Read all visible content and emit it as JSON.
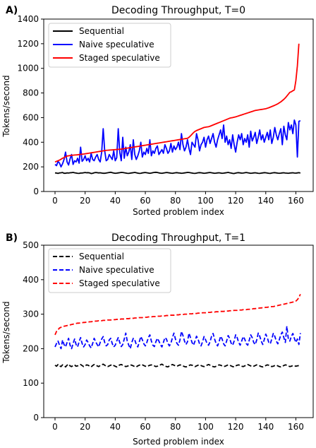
{
  "chart_data": [
    {
      "type": "line",
      "panel_label": "A)",
      "title": "Decoding Throughput, T=0",
      "xlabel": "Sorted problem index",
      "ylabel": "Tokens/second",
      "xlim": [
        -7.5,
        171.5
      ],
      "ylim": [
        0,
        1400
      ],
      "xticks": [
        0,
        20,
        40,
        60,
        80,
        100,
        120,
        140,
        160
      ],
      "yticks": [
        0,
        200,
        400,
        600,
        800,
        1000,
        1200,
        1400
      ],
      "grid": false,
      "legend": "top-left",
      "x_start": 0,
      "x_step": 1,
      "series": [
        {
          "name": "Sequential",
          "color": "#000000",
          "dash": "solid",
          "values": [
            151,
            150,
            147,
            151,
            152,
            154,
            148,
            148,
            151,
            150,
            152,
            153,
            155,
            152,
            150,
            148,
            147,
            150,
            150,
            152,
            154,
            152,
            153,
            151,
            146,
            148,
            152,
            154,
            153,
            151,
            152,
            150,
            148,
            148,
            150,
            152,
            154,
            156,
            153,
            150,
            148,
            149,
            151,
            153,
            155,
            154,
            152,
            150,
            148,
            147,
            149,
            151,
            153,
            155,
            152,
            149,
            147,
            148,
            151,
            153,
            154,
            152,
            150,
            148,
            150,
            153,
            155,
            156,
            154,
            151,
            149,
            148,
            150,
            152,
            154,
            153,
            151,
            149,
            148,
            150,
            152,
            153,
            151,
            150,
            148,
            149,
            151,
            153,
            155,
            154,
            152,
            150,
            148,
            147,
            149,
            152,
            153,
            152,
            150,
            148,
            149,
            151,
            153,
            154,
            152,
            150,
            148,
            149,
            151,
            152,
            150,
            148,
            149,
            151,
            153,
            155,
            152,
            150,
            147,
            146,
            149,
            152,
            153,
            151,
            149,
            150,
            152,
            154,
            152,
            150,
            148,
            149,
            151,
            152,
            150,
            148,
            147,
            149,
            151,
            153,
            152,
            150,
            148,
            147,
            150,
            152,
            153,
            151,
            149,
            148,
            149,
            151,
            152,
            150,
            149,
            148,
            150,
            151,
            152,
            150,
            149,
            151,
            153,
            150
          ]
        },
        {
          "name": "Naive speculative",
          "color": "#0000ff",
          "dash": "solid",
          "values": [
            220,
            210,
            245,
            230,
            200,
            225,
            260,
            320,
            240,
            215,
            265,
            300,
            220,
            250,
            240,
            270,
            230,
            360,
            245,
            260,
            290,
            250,
            270,
            240,
            310,
            260,
            250,
            280,
            300,
            260,
            240,
            320,
            510,
            330,
            250,
            260,
            300,
            280,
            260,
            330,
            250,
            275,
            510,
            320,
            250,
            440,
            270,
            360,
            290,
            320,
            380,
            260,
            420,
            300,
            260,
            290,
            330,
            400,
            280,
            320,
            300,
            350,
            310,
            420,
            290,
            330,
            310,
            350,
            370,
            300,
            320,
            340,
            310,
            380,
            350,
            310,
            330,
            390,
            320,
            370,
            340,
            360,
            400,
            340,
            470,
            380,
            330,
            360,
            420,
            350,
            300,
            400,
            380,
            360,
            470,
            420,
            330,
            380,
            400,
            440,
            360,
            420,
            450,
            390,
            430,
            470,
            400,
            360,
            420,
            460,
            500,
            430,
            540,
            400,
            450,
            380,
            420,
            350,
            460,
            380,
            320,
            400,
            460,
            420,
            470,
            380,
            430,
            400,
            460,
            360,
            490,
            410,
            440,
            480,
            390,
            440,
            500,
            420,
            460,
            400,
            440,
            480,
            420,
            500,
            390,
            440,
            520,
            460,
            420,
            470,
            510,
            380,
            530,
            460,
            420,
            560,
            500,
            540,
            470,
            580,
            540,
            280,
            570,
            575
          ]
        },
        {
          "name": "Staged speculative",
          "color": "#ff0000",
          "dash": "solid",
          "values": [
            240,
            245,
            250,
            255,
            262,
            270,
            275,
            282,
            288,
            290,
            292,
            294,
            295,
            296,
            297,
            298,
            300,
            302,
            303,
            304,
            306,
            308,
            310,
            312,
            314,
            316,
            318,
            320,
            322,
            324,
            326,
            328,
            330,
            332,
            334,
            335,
            336,
            337,
            338,
            339,
            340,
            341,
            342,
            343,
            344,
            346,
            348,
            350,
            352,
            354,
            356,
            358,
            360,
            362,
            364,
            366,
            368,
            370,
            372,
            374,
            376,
            378,
            380,
            382,
            384,
            386,
            388,
            390,
            392,
            394,
            396,
            398,
            400,
            402,
            404,
            406,
            408,
            410,
            412,
            414,
            416,
            418,
            420,
            422,
            424,
            426,
            428,
            430,
            432,
            440,
            452,
            465,
            478,
            488,
            495,
            500,
            505,
            510,
            515,
            520,
            522,
            524,
            526,
            530,
            535,
            540,
            545,
            550,
            555,
            560,
            565,
            570,
            575,
            580,
            585,
            590,
            595,
            598,
            600,
            603,
            606,
            610,
            614,
            618,
            622,
            626,
            630,
            634,
            638,
            642,
            646,
            650,
            654,
            658,
            660,
            662,
            664,
            666,
            668,
            670,
            672,
            676,
            680,
            685,
            690,
            695,
            700,
            706,
            712,
            720,
            728,
            738,
            748,
            760,
            775,
            790,
            805,
            810,
            818,
            825,
            900,
            1020,
            1200
          ]
        }
      ]
    },
    {
      "type": "line",
      "panel_label": "B)",
      "title": "Decoding Throughput, T=1",
      "xlabel": "Sorted problem index",
      "ylabel": "Tokens/second",
      "xlim": [
        -7.5,
        171.5
      ],
      "ylim": [
        0,
        500
      ],
      "xticks": [
        0,
        20,
        40,
        60,
        80,
        100,
        120,
        140,
        160
      ],
      "yticks": [
        0,
        100,
        200,
        300,
        400,
        500
      ],
      "grid": false,
      "legend": "top-left",
      "x_start": 0,
      "x_step": 1,
      "series": [
        {
          "name": "Sequential",
          "color": "#000000",
          "dash": "dashed",
          "values": [
            152,
            149,
            154,
            150,
            148,
            153,
            151,
            147,
            152,
            155,
            150,
            148,
            151,
            153,
            149,
            150,
            152,
            154,
            151,
            148,
            150,
            153,
            152,
            149,
            147,
            151,
            154,
            152,
            150,
            148,
            151,
            153,
            155,
            152,
            149,
            148,
            150,
            152,
            154,
            151,
            149,
            147,
            150,
            153,
            154,
            152,
            150,
            148,
            149,
            151,
            153,
            152,
            150,
            148,
            147,
            150,
            152,
            154,
            153,
            151,
            149,
            148,
            150,
            152,
            153,
            151,
            150,
            148,
            149,
            151,
            153,
            155,
            152,
            150,
            148,
            147,
            150,
            152,
            154,
            152,
            150,
            149,
            151,
            153,
            152,
            150,
            148,
            147,
            149,
            151,
            153,
            152,
            150,
            148,
            150,
            152,
            153,
            151,
            149,
            148,
            150,
            152,
            154,
            152,
            150,
            148,
            147,
            149,
            151,
            153,
            152,
            150,
            148,
            149,
            151,
            153,
            152,
            150,
            148,
            147,
            150,
            152,
            153,
            151,
            149,
            148,
            150,
            152,
            154,
            152,
            150,
            148,
            149,
            151,
            153,
            152,
            150,
            148,
            147,
            149,
            151,
            153,
            152,
            150,
            148,
            149,
            151,
            152,
            150,
            148,
            147,
            149,
            151,
            153,
            152,
            150,
            148,
            149,
            151,
            150,
            149,
            150,
            151,
            150
          ]
        },
        {
          "name": "Naive speculative",
          "color": "#0000ff",
          "dash": "dashed",
          "values": [
            205,
            215,
            222,
            210,
            200,
            225,
            212,
            205,
            218,
            230,
            210,
            200,
            215,
            228,
            212,
            205,
            220,
            232,
            215,
            205,
            212,
            225,
            218,
            208,
            202,
            215,
            230,
            220,
            212,
            205,
            218,
            228,
            235,
            218,
            208,
            212,
            225,
            230,
            215,
            205,
            210,
            222,
            232,
            218,
            206,
            212,
            228,
            245,
            222,
            210,
            200,
            218,
            230,
            225,
            212,
            205,
            220,
            235,
            226,
            214,
            208,
            218,
            232,
            240,
            222,
            210,
            206,
            220,
            230,
            222,
            212,
            205,
            218,
            232,
            228,
            215,
            208,
            216,
            232,
            245,
            228,
            215,
            210,
            225,
            250,
            238,
            222,
            212,
            220,
            245,
            232,
            218,
            210,
            222,
            236,
            228,
            214,
            208,
            220,
            235,
            226,
            215,
            210,
            220,
            236,
            244,
            228,
            215,
            208,
            220,
            236,
            228,
            214,
            208,
            222,
            238,
            230,
            216,
            210,
            222,
            240,
            232,
            218,
            210,
            222,
            235,
            228,
            215,
            210,
            224,
            240,
            232,
            218,
            212,
            225,
            245,
            236,
            222,
            212,
            226,
            242,
            232,
            218,
            214,
            228,
            244,
            236,
            222,
            214,
            226,
            240,
            248,
            232,
            218,
            265,
            228,
            222,
            236,
            244,
            230,
            218,
            228,
            212,
            245
          ]
        },
        {
          "name": "Staged speculative",
          "color": "#ff0000",
          "dash": "dashed",
          "values": [
            240,
            250,
            255,
            260,
            262,
            264,
            265,
            266,
            267,
            268,
            269,
            270,
            271,
            272,
            273,
            274,
            274,
            275,
            275,
            276,
            276,
            277,
            277,
            278,
            278,
            279,
            279,
            280,
            280,
            281,
            281,
            281,
            282,
            282,
            282,
            283,
            283,
            283,
            284,
            284,
            284,
            285,
            285,
            285,
            286,
            286,
            286,
            287,
            287,
            287,
            288,
            288,
            288,
            289,
            289,
            289,
            290,
            290,
            290,
            291,
            291,
            291,
            292,
            292,
            292,
            293,
            293,
            293,
            294,
            294,
            294,
            295,
            295,
            295,
            296,
            296,
            296,
            297,
            297,
            297,
            298,
            298,
            298,
            299,
            299,
            299,
            300,
            300,
            300,
            301,
            301,
            301,
            302,
            302,
            302,
            303,
            303,
            303,
            304,
            304,
            304,
            305,
            305,
            305,
            306,
            306,
            306,
            307,
            307,
            307,
            308,
            308,
            308,
            309,
            309,
            309,
            310,
            310,
            310,
            311,
            311,
            311,
            312,
            312,
            312,
            313,
            313,
            313,
            314,
            314,
            315,
            315,
            316,
            316,
            317,
            317,
            318,
            318,
            319,
            319,
            320,
            320,
            321,
            321,
            322,
            322,
            323,
            324,
            325,
            326,
            327,
            328,
            329,
            330,
            331,
            332,
            333,
            334,
            335,
            336,
            338,
            342,
            348,
            358
          ]
        }
      ]
    }
  ]
}
